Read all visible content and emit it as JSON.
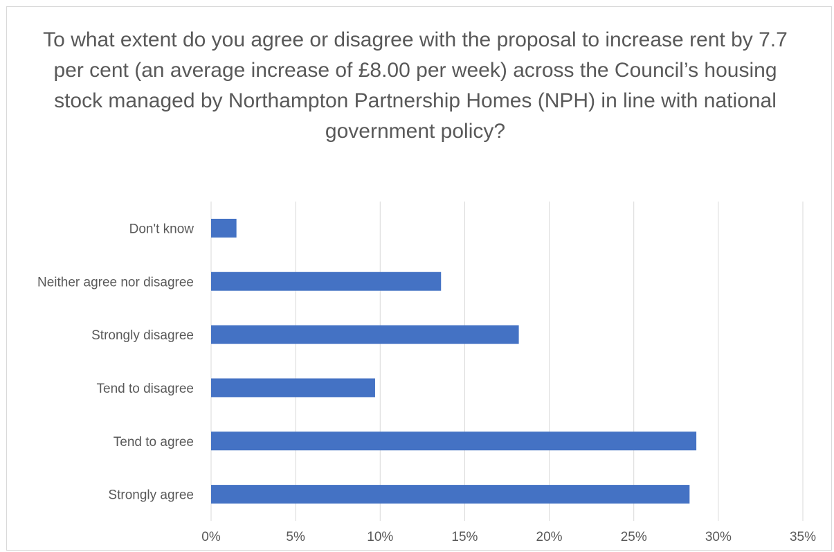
{
  "chart_data": {
    "type": "bar",
    "orientation": "horizontal",
    "title": "To what extent do you agree or disagree with the proposal to increase rent by 7.7 per cent (an average increase of £8.00 per week) across the Council’s housing stock managed by Northampton Partnership Homes (NPH) in line with national government policy?",
    "categories": [
      "Don't know",
      "Neither agree nor disagree",
      "Strongly disagree",
      "Tend to disagree",
      "Tend to agree",
      "Strongly agree"
    ],
    "values": [
      1.5,
      13.6,
      18.2,
      9.7,
      28.7,
      28.3
    ],
    "xlim": [
      0,
      35
    ],
    "xticks": [
      "0%",
      "5%",
      "10%",
      "15%",
      "20%",
      "25%",
      "30%",
      "35%"
    ],
    "grid": true,
    "bar_color": "#4472c4"
  }
}
